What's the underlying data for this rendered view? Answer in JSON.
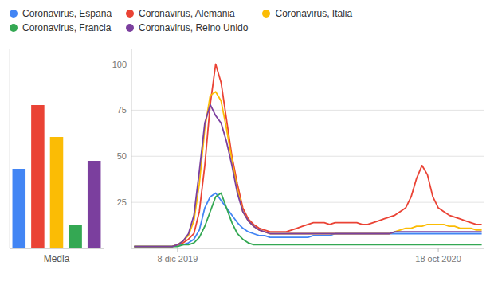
{
  "chart_data": [
    {
      "type": "line",
      "categories": [
        null,
        null,
        null,
        null,
        null,
        null,
        null,
        null,
        "8 dic 2019",
        null,
        null,
        null,
        null,
        null,
        null,
        null,
        null,
        null,
        null,
        null,
        null,
        null,
        null,
        null,
        null,
        null,
        null,
        null,
        null,
        null,
        null,
        null,
        null,
        null,
        null,
        null,
        null,
        null,
        null,
        null,
        null,
        null,
        null,
        null,
        null,
        null,
        null,
        null,
        null,
        null,
        null,
        null,
        null,
        null,
        null,
        null,
        "18 oct 2020",
        null,
        null,
        null,
        null,
        null,
        null,
        null,
        null
      ],
      "series": [
        {
          "name": "Coronavirus, España",
          "color": "#4285F4",
          "values": [
            1,
            1,
            1,
            1,
            1,
            1,
            1,
            1,
            2,
            2,
            3,
            5,
            10,
            22,
            28,
            30,
            26,
            22,
            18,
            14,
            11,
            9,
            8,
            7,
            7,
            6,
            6,
            6,
            6,
            6,
            6,
            6,
            6,
            7,
            7,
            7,
            7,
            8,
            8,
            8,
            8,
            8,
            8,
            8,
            8,
            8,
            8,
            8,
            8,
            8,
            8,
            8,
            8,
            8,
            8,
            8,
            8,
            8,
            8,
            8,
            8,
            8,
            8,
            8,
            8
          ]
        },
        {
          "name": "Coronavirus, Alemania",
          "color": "#EA4335",
          "values": [
            1,
            1,
            1,
            1,
            1,
            1,
            1,
            1,
            2,
            3,
            5,
            8,
            20,
            45,
            78,
            100,
            90,
            70,
            50,
            35,
            22,
            16,
            13,
            11,
            10,
            9,
            9,
            9,
            9,
            10,
            11,
            12,
            13,
            14,
            14,
            14,
            13,
            14,
            14,
            14,
            14,
            14,
            13,
            13,
            14,
            15,
            16,
            17,
            18,
            20,
            22,
            28,
            38,
            45,
            40,
            28,
            22,
            20,
            18,
            17,
            16,
            15,
            14,
            13,
            13
          ]
        },
        {
          "name": "Coronavirus, Italia",
          "color": "#FBBC05",
          "values": [
            1,
            1,
            1,
            1,
            1,
            1,
            1,
            1,
            2,
            4,
            7,
            15,
            35,
            65,
            83,
            85,
            80,
            65,
            48,
            32,
            20,
            15,
            12,
            10,
            9,
            8,
            8,
            8,
            8,
            8,
            8,
            8,
            8,
            8,
            8,
            8,
            8,
            8,
            8,
            8,
            8,
            8,
            8,
            8,
            8,
            8,
            8,
            8,
            9,
            10,
            11,
            11,
            12,
            12,
            13,
            13,
            13,
            13,
            12,
            12,
            11,
            11,
            11,
            10,
            10
          ]
        },
        {
          "name": "Coronavirus, Francia",
          "color": "#34A853",
          "values": [
            1,
            1,
            1,
            1,
            1,
            1,
            1,
            1,
            1,
            2,
            2,
            3,
            6,
            12,
            20,
            28,
            30,
            22,
            14,
            8,
            5,
            3,
            2,
            2,
            2,
            2,
            2,
            2,
            2,
            2,
            2,
            2,
            2,
            2,
            2,
            2,
            2,
            2,
            2,
            2,
            2,
            2,
            2,
            2,
            2,
            2,
            2,
            2,
            2,
            2,
            2,
            2,
            2,
            2,
            2,
            2,
            2,
            2,
            2,
            2,
            2,
            2,
            2,
            2,
            2
          ]
        },
        {
          "name": "Coronavirus, Reino Unido",
          "color": "#7B3F9E",
          "values": [
            1,
            1,
            1,
            1,
            1,
            1,
            1,
            1,
            2,
            4,
            8,
            18,
            42,
            68,
            78,
            72,
            68,
            58,
            45,
            30,
            20,
            15,
            12,
            10,
            9,
            8,
            8,
            8,
            8,
            8,
            8,
            8,
            8,
            8,
            8,
            8,
            8,
            8,
            8,
            8,
            8,
            8,
            8,
            8,
            8,
            8,
            8,
            8,
            9,
            9,
            9,
            9,
            9,
            9,
            9,
            9,
            9,
            9,
            9,
            9,
            9,
            9,
            9,
            9,
            9
          ]
        }
      ],
      "ylim": [
        0,
        108
      ],
      "yticks": [
        25,
        50,
        75,
        100
      ],
      "grid": true,
      "legend": "top-left"
    },
    {
      "type": "bar",
      "x_label": "Media",
      "categories": [
        null,
        null,
        null,
        null,
        null
      ],
      "values": [
        10,
        18,
        14,
        3,
        11
      ],
      "colors": [
        "#4285F4",
        "#EA4335",
        "#FBBC05",
        "#34A853",
        "#7B3F9E"
      ],
      "ylim": [
        0,
        25
      ],
      "tick_labels": false
    }
  ]
}
